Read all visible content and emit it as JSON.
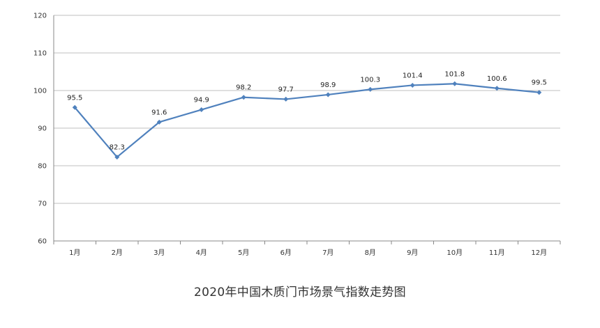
{
  "chart_data": {
    "type": "line",
    "title": "2020年中国木质门市场景气指数走势图",
    "xlabel": "",
    "ylabel": "",
    "categories": [
      "1月",
      "2月",
      "3月",
      "4月",
      "5月",
      "6月",
      "7月",
      "8月",
      "9月",
      "10月",
      "11月",
      "12月"
    ],
    "values": [
      95.5,
      82.3,
      91.6,
      94.9,
      98.2,
      97.7,
      98.9,
      100.3,
      101.4,
      101.8,
      100.6,
      99.5
    ],
    "ylim": [
      60,
      120
    ],
    "yticks": [
      60,
      70,
      80,
      90,
      100,
      110,
      120
    ],
    "grid": true,
    "legend": "none",
    "color": "#4f81bd"
  }
}
